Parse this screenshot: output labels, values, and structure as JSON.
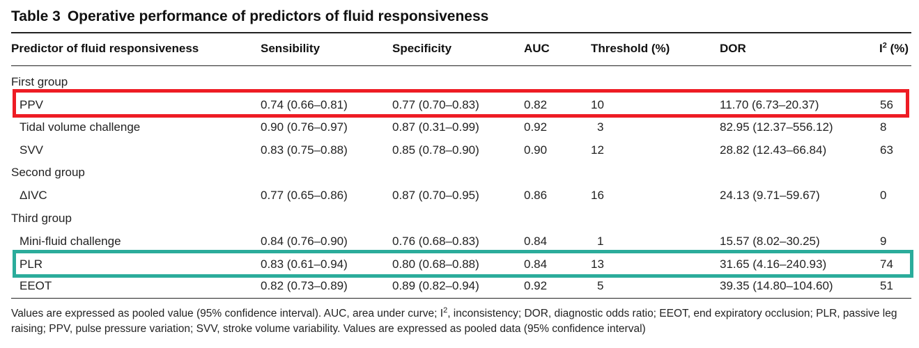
{
  "title": {
    "label": "Table 3",
    "text": "Operative performance of predictors of fluid responsiveness"
  },
  "columns": {
    "predictor": "Predictor of fluid responsiveness",
    "sensibility": "Sensibility",
    "specificity": "Specificity",
    "auc": "AUC",
    "threshold": "Threshold (%)",
    "dor": "DOR",
    "i2_letter": "I",
    "i2_exp": "2",
    "i2_unit": " (%)"
  },
  "groups": [
    {
      "name": "First group",
      "rows": [
        {
          "predictor": "PPV",
          "sensibility": "0.74 (0.66–0.81)",
          "specificity": "0.77 (0.70–0.83)",
          "auc": "0.82",
          "threshold": "10",
          "dor": "11.70 (6.73–20.37)",
          "i2": "56"
        },
        {
          "predictor": "Tidal volume challenge",
          "sensibility": "0.90 (0.76–0.97)",
          "specificity": "0.87 (0.31–0.99)",
          "auc": "0.92",
          "threshold": "3",
          "dor": "82.95 (12.37–556.12)",
          "i2": "8"
        },
        {
          "predictor": "SVV",
          "sensibility": "0.83 (0.75–0.88)",
          "specificity": "0.85 (0.78–0.90)",
          "auc": "0.90",
          "threshold": "12",
          "dor": "28.82 (12.43–66.84)",
          "i2": "63"
        }
      ]
    },
    {
      "name": "Second group",
      "rows": [
        {
          "predictor": "ΔIVC",
          "sensibility": "0.77 (0.65–0.86)",
          "specificity": "0.87 (0.70–0.95)",
          "auc": "0.86",
          "threshold": "16",
          "dor": "24.13 (9.71–59.67)",
          "i2": "0"
        }
      ]
    },
    {
      "name": "Third group",
      "rows": [
        {
          "predictor": "Mini-fluid challenge",
          "sensibility": "0.84 (0.76–0.90)",
          "specificity": "0.76 (0.68–0.83)",
          "auc": "0.84",
          "threshold": "1",
          "dor": "15.57 (8.02–30.25)",
          "i2": "9"
        },
        {
          "predictor": "PLR",
          "sensibility": "0.83 (0.61–0.94)",
          "specificity": "0.80 (0.68–0.88)",
          "auc": "0.84",
          "threshold": "13",
          "dor": "31.65 (4.16–240.93)",
          "i2": "74"
        },
        {
          "predictor": "EEOT",
          "sensibility": "0.82 (0.73–0.89)",
          "specificity": "0.89 (0.82–0.94)",
          "auc": "0.92",
          "threshold": "5",
          "dor": "39.35 (14.80–104.60)",
          "i2": "51"
        }
      ]
    }
  ],
  "footnote": {
    "part1": "Values are expressed as pooled value (95% confidence interval). AUC, area under curve; I",
    "sup": "2",
    "part2": ", inconsistency; DOR, diagnostic odds ratio; EEOT, end expiratory occlusion; PLR, passive leg raising; PPV, pulse pressure variation; SVV, stroke volume variability. Values are expressed as pooled data (95% confidence interval)"
  },
  "highlight_colors": {
    "red_box": "#ee1c24",
    "teal_box": "#2bac9b"
  }
}
